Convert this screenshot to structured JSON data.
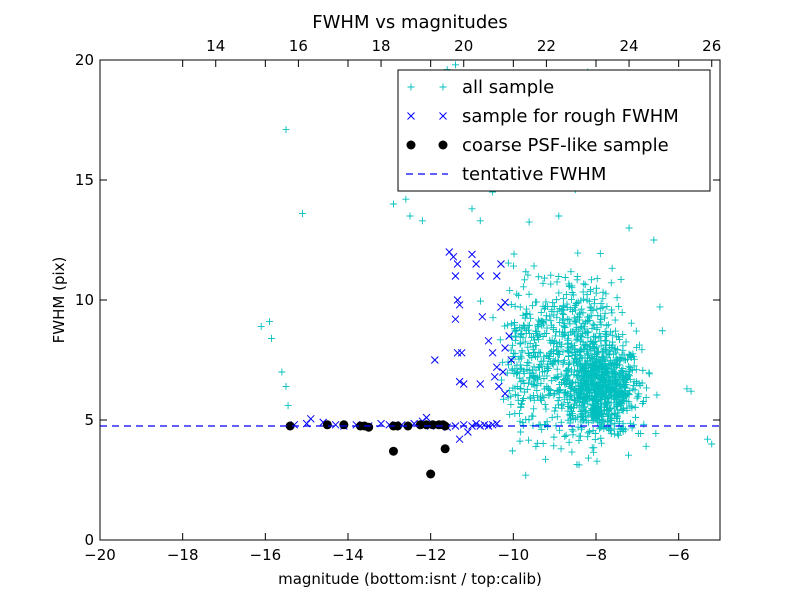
{
  "chart_data": {
    "type": "scatter",
    "title": "FWHM vs magnitudes",
    "xlabel": "magnitude (bottom:isnt / top:calib)",
    "ylabel": "FWHM (pix)",
    "xlim": [
      -20,
      -5
    ],
    "ylim": [
      0,
      20
    ],
    "x_ticks": [
      -20,
      -18,
      -16,
      -14,
      -12,
      -10,
      -8,
      -6
    ],
    "x_tick_labels": [
      "−20",
      "−18",
      "−16",
      "−14",
      "−12",
      "−10",
      "−8",
      "−6"
    ],
    "y_ticks": [
      0,
      5,
      10,
      15,
      20
    ],
    "y_tick_labels": [
      "0",
      "5",
      "10",
      "15",
      "20"
    ],
    "top_axis": {
      "label": "calib",
      "offset": 31.2,
      "ticks": [
        14,
        16,
        18,
        20,
        22,
        24,
        26
      ],
      "tick_labels": [
        "14",
        "16",
        "18",
        "20",
        "22",
        "24",
        "26"
      ]
    },
    "grid": false,
    "legend_position": "top-right",
    "legend": [
      {
        "label": "all sample",
        "marker": "+",
        "color": "#00bfbf"
      },
      {
        "label": "sample for rough FWHM",
        "marker": "x",
        "color": "#0000ff"
      },
      {
        "label": "coarse PSF-like sample",
        "marker": "o",
        "color": "#000000"
      },
      {
        "label": "tentative FWHM",
        "marker": "dashed-line",
        "color": "#0000ff"
      }
    ],
    "tentative_fwhm": 4.75,
    "series": [
      {
        "name": "all sample",
        "marker": "+",
        "color": "#00bfbf",
        "points": [
          [
            -15.5,
            17.1
          ],
          [
            -15.1,
            13.6
          ],
          [
            -16.1,
            8.9
          ],
          [
            -15.9,
            9.1
          ],
          [
            -15.85,
            8.4
          ],
          [
            -15.6,
            7.0
          ],
          [
            -15.5,
            6.4
          ],
          [
            -15.45,
            5.6
          ],
          [
            -12.9,
            14.0
          ],
          [
            -12.6,
            14.2
          ],
          [
            -12.5,
            13.5
          ],
          [
            -12.2,
            13.3
          ],
          [
            -11.6,
            19.6
          ],
          [
            -11.4,
            19.8
          ],
          [
            -11.7,
            18.2
          ],
          [
            -11.3,
            15.5
          ],
          [
            -11.0,
            13.8
          ],
          [
            -10.8,
            13.3
          ],
          [
            -10.5,
            14.5
          ],
          [
            -9.7,
            2.7
          ],
          [
            -8.9,
            13.5
          ],
          [
            -8.5,
            14.6
          ],
          [
            -7.2,
            13.0
          ],
          [
            -6.6,
            12.5
          ],
          [
            -8.2,
            19.5
          ],
          [
            -5.8,
            6.3
          ],
          [
            -5.7,
            6.2
          ],
          [
            -5.3,
            4.2
          ],
          [
            -5.2,
            4.0
          ]
        ],
        "density_regions": [
          {
            "x_center": -7.9,
            "x_spread": 0.9,
            "y_center": 6.3,
            "y_spread": 1.7,
            "count": 900
          },
          {
            "x_center": -8.6,
            "x_spread": 1.2,
            "y_center": 8.8,
            "y_spread": 2.3,
            "count": 330
          },
          {
            "x_center": -9.3,
            "x_spread": 0.7,
            "y_center": 6.6,
            "y_spread": 2.2,
            "count": 140
          },
          {
            "x_center": -9.8,
            "x_spread": 0.4,
            "y_center": 7.5,
            "y_spread": 2.7,
            "count": 90
          }
        ]
      },
      {
        "name": "sample for rough FWHM",
        "marker": "x",
        "color": "#0000ff",
        "points": [
          [
            -15.3,
            4.8
          ],
          [
            -15.0,
            4.85
          ],
          [
            -14.9,
            5.05
          ],
          [
            -14.6,
            4.9
          ],
          [
            -14.3,
            4.8
          ],
          [
            -14.1,
            4.75
          ],
          [
            -13.8,
            4.8
          ],
          [
            -13.5,
            4.75
          ],
          [
            -13.2,
            4.85
          ],
          [
            -13.0,
            4.8
          ],
          [
            -12.7,
            4.8
          ],
          [
            -12.4,
            4.85
          ],
          [
            -12.2,
            4.95
          ],
          [
            -12.1,
            5.1
          ],
          [
            -12.0,
            4.75
          ],
          [
            -11.8,
            4.8
          ],
          [
            -11.6,
            4.7
          ],
          [
            -11.4,
            4.75
          ],
          [
            -11.2,
            4.8
          ],
          [
            -11.0,
            4.75
          ],
          [
            -10.9,
            4.85
          ],
          [
            -10.8,
            4.75
          ],
          [
            -10.7,
            4.8
          ],
          [
            -10.6,
            4.75
          ],
          [
            -10.5,
            4.8
          ],
          [
            -10.4,
            4.85
          ],
          [
            -11.3,
            4.2
          ],
          [
            -11.1,
            4.5
          ],
          [
            -11.55,
            12.0
          ],
          [
            -11.45,
            11.8
          ],
          [
            -11.35,
            11.5
          ],
          [
            -11.4,
            11.0
          ],
          [
            -11.35,
            10.0
          ],
          [
            -11.3,
            9.8
          ],
          [
            -11.4,
            9.2
          ],
          [
            -11.35,
            7.8
          ],
          [
            -11.25,
            7.8
          ],
          [
            -11.3,
            6.6
          ],
          [
            -11.2,
            6.5
          ],
          [
            -11.0,
            11.9
          ],
          [
            -10.9,
            11.5
          ],
          [
            -10.8,
            11.0
          ],
          [
            -10.75,
            9.3
          ],
          [
            -10.6,
            8.3
          ],
          [
            -10.5,
            7.8
          ],
          [
            -10.4,
            7.2
          ],
          [
            -10.45,
            6.8
          ],
          [
            -10.3,
            11.5
          ],
          [
            -10.4,
            11.0
          ],
          [
            -10.2,
            9.9
          ],
          [
            -10.3,
            9.7
          ],
          [
            -10.1,
            8.5
          ],
          [
            -10.2,
            8.0
          ],
          [
            -10.05,
            7.5
          ],
          [
            -10.25,
            7.0
          ],
          [
            -10.35,
            6.4
          ],
          [
            -10.2,
            6.1
          ],
          [
            -11.9,
            7.5
          ],
          [
            -10.8,
            6.5
          ]
        ]
      },
      {
        "name": "coarse PSF-like sample",
        "marker": "o",
        "color": "#000000",
        "points": [
          [
            -15.4,
            4.75
          ],
          [
            -14.5,
            4.8
          ],
          [
            -14.1,
            4.8
          ],
          [
            -13.7,
            4.75
          ],
          [
            -13.6,
            4.75
          ],
          [
            -13.5,
            4.7
          ],
          [
            -12.9,
            4.75
          ],
          [
            -12.8,
            4.75
          ],
          [
            -12.55,
            4.75
          ],
          [
            -12.25,
            4.8
          ],
          [
            -12.1,
            4.8
          ],
          [
            -11.95,
            4.8
          ],
          [
            -11.8,
            4.8
          ],
          [
            -11.65,
            4.75
          ],
          [
            -12.9,
            3.7
          ],
          [
            -11.65,
            3.8
          ],
          [
            -12.0,
            2.75
          ],
          [
            -11.7,
            4.8
          ]
        ]
      }
    ]
  }
}
